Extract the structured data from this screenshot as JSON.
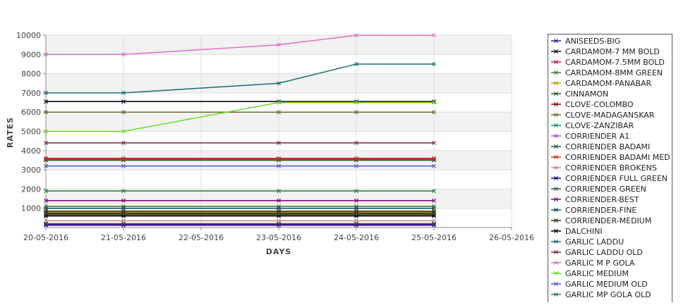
{
  "chart_data": {
    "type": "line",
    "title": "",
    "xlabel": "DAYS",
    "ylabel": "RATES",
    "x_ticks": [
      "20-05-2016",
      "21-05-2016",
      "22-05-2016",
      "23-05-2016",
      "24-05-2016",
      "25-05-2016",
      "26-05-2016"
    ],
    "x": [
      "20-05-2016",
      "21-05-2016",
      "23-05-2016",
      "24-05-2016",
      "25-05-2016"
    ],
    "ylim": [
      0,
      10000
    ],
    "y_ticks": [
      1000,
      2000,
      3000,
      4000,
      5000,
      6000,
      7000,
      8000,
      9000,
      10000
    ],
    "grid": true,
    "legend_position": "right",
    "series": [
      {
        "name": "ANISEEDS-BIG",
        "color": "#1f1f99",
        "values": [
          6550,
          6550,
          6550,
          6550,
          6550
        ]
      },
      {
        "name": "CARDAMOM-7 MM BOLD",
        "color": "#111111",
        "values": [
          6550,
          6550,
          6550,
          6550,
          6550
        ]
      },
      {
        "name": "CARDAMOM-7.5MM BOLD",
        "color": "#c2185b",
        "values": [
          3600,
          3600,
          3600,
          3600,
          3600
        ]
      },
      {
        "name": "CARDAMOM-8MM GREEN",
        "color": "#2e7d32",
        "values": [
          1100,
          1100,
          1100,
          1100,
          1100
        ]
      },
      {
        "name": "CARDAMOM-PANABAR",
        "color": "#b8a000",
        "values": [
          800,
          800,
          800,
          800,
          800
        ]
      },
      {
        "name": "CINNAMON",
        "color": "#1b5e20",
        "values": [
          750,
          750,
          750,
          750,
          750
        ]
      },
      {
        "name": "CLOVE-COLOMBO",
        "color": "#8b0000",
        "values": [
          700,
          700,
          700,
          700,
          700
        ]
      },
      {
        "name": "CLOVE-MADAGANSKAR",
        "color": "#6b6b2a",
        "values": [
          6000,
          6000,
          6000,
          6000,
          6000
        ]
      },
      {
        "name": "CLOVE-ZANZIBAR",
        "color": "#138d75",
        "values": [
          650,
          650,
          650,
          650,
          650
        ]
      },
      {
        "name": "CORRIENDER A1",
        "color": "#aa55cc",
        "values": [
          100,
          100,
          100,
          100,
          100
        ]
      },
      {
        "name": "CORRIENDER BADAMI",
        "color": "#1a5a3a",
        "values": [
          3500,
          3500,
          3500,
          3500,
          3500
        ]
      },
      {
        "name": "CORRIENDER BADAMI MED",
        "color": "#cc3300",
        "values": [
          3550,
          3550,
          3550,
          3550,
          3550
        ]
      },
      {
        "name": "CORRIENDER BROKENS",
        "color": "#d08080",
        "values": [
          350,
          350,
          350,
          350,
          350
        ]
      },
      {
        "name": "CORRIENDER FULL GREEN",
        "color": "#000088",
        "values": [
          150,
          150,
          150,
          150,
          150
        ]
      },
      {
        "name": "CORRIENDER GREEN",
        "color": "#335533",
        "values": [
          200,
          200,
          200,
          200,
          200
        ]
      },
      {
        "name": "CORRIENDER-BEST",
        "color": "#800080",
        "values": [
          1400,
          1400,
          1400,
          1400,
          1400
        ]
      },
      {
        "name": "CORRIENDER-FINE",
        "color": "#0a4a5a",
        "values": [
          1000,
          1000,
          1000,
          1000,
          1000
        ]
      },
      {
        "name": "CORRIENDER-MEDIUM",
        "color": "#3a2a1a",
        "values": [
          850,
          850,
          850,
          850,
          850
        ]
      },
      {
        "name": "DALCHINI",
        "color": "#000000",
        "values": [
          600,
          600,
          600,
          600,
          600
        ]
      },
      {
        "name": "GARLIC LADDU",
        "color": "#1a6a7a",
        "values": [
          7000,
          7000,
          7500,
          8500,
          8500
        ]
      },
      {
        "name": "GARLIC LADDU OLD",
        "color": "#7a2a3a",
        "values": [
          4400,
          4400,
          4400,
          4400,
          4400
        ]
      },
      {
        "name": "GARLIC M P GOLA",
        "color": "#e070c8",
        "values": [
          9000,
          9000,
          9500,
          10000,
          10000
        ]
      },
      {
        "name": "GARLIC MEDIUM",
        "color": "#66dd22",
        "values": [
          5000,
          5000,
          6500,
          6500,
          6500
        ]
      },
      {
        "name": "GARLIC MEDIUM OLD",
        "color": "#5555cc",
        "values": [
          3200,
          3200,
          3200,
          3200,
          3200
        ]
      },
      {
        "name": "GARLIC MP GOLA OLD",
        "color": "#2a7a4a",
        "values": [
          1900,
          1900,
          1900,
          1900,
          1900
        ]
      }
    ]
  }
}
